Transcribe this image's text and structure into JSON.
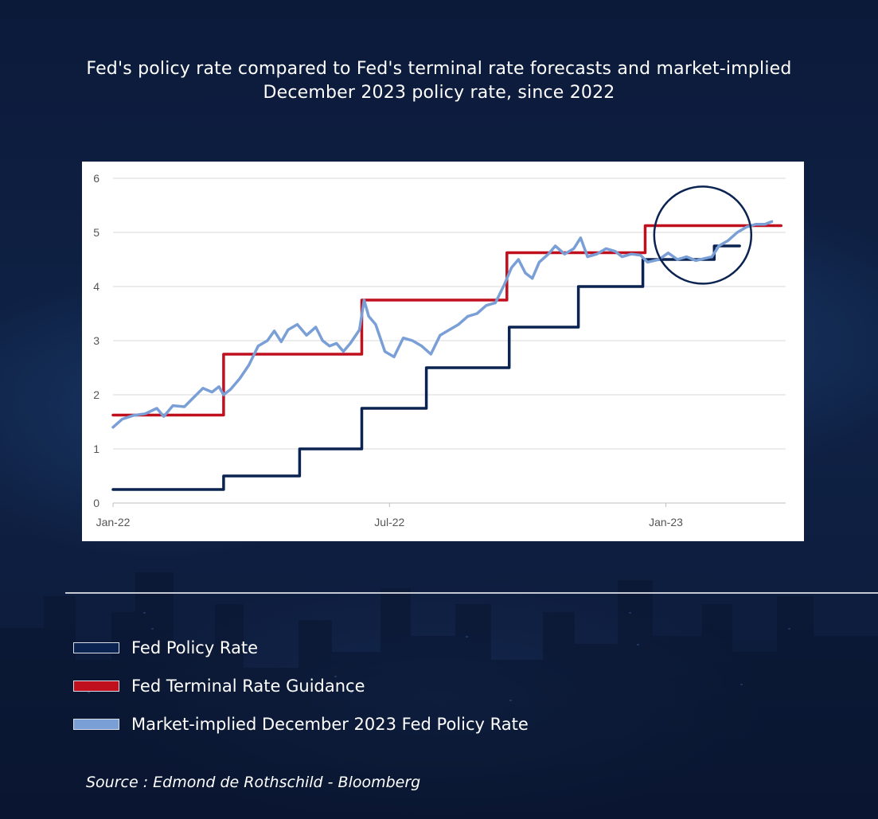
{
  "title": "Fed's policy rate compared to Fed's terminal rate forecasts and market-implied December 2023 policy rate, since 2022",
  "colors": {
    "fed_policy": "#0b2350",
    "terminal": "#c0101e",
    "market": "#7a9fd6",
    "highlight_circle": "#0b2350"
  },
  "legend": [
    {
      "label": "Fed Policy Rate",
      "color": "#0b2350"
    },
    {
      "label": "Fed Terminal Rate Guidance",
      "color": "#c0101e"
    },
    {
      "label": "Market-implied December 2023 Fed Policy Rate",
      "color": "#7a9fd6"
    }
  ],
  "source": "Source : Edmond de Rothschild - Bloomberg",
  "chart_data": {
    "type": "line",
    "title": "Fed's policy rate compared to Fed's terminal rate forecasts and market-implied December 2023 policy rate, since 2022",
    "xlabel": "",
    "ylabel": "",
    "x_unit": "months since Jan-22",
    "xlim": [
      0,
      14.6
    ],
    "ylim": [
      0,
      6
    ],
    "yticks": [
      0,
      1,
      2,
      3,
      4,
      5,
      6
    ],
    "xticks": [
      {
        "x": 0,
        "label": "Jan-22"
      },
      {
        "x": 6,
        "label": "Jul-22"
      },
      {
        "x": 12,
        "label": "Jan-23"
      }
    ],
    "grid": true,
    "annotation": {
      "type": "circle",
      "center_x": 12.8,
      "center_y": 4.95,
      "note": "highlighted recent convergence"
    },
    "series": [
      {
        "name": "Fed Policy Rate",
        "color": "#0b2350",
        "points": [
          [
            0,
            0.25
          ],
          [
            2.4,
            0.25
          ],
          [
            2.4,
            0.5
          ],
          [
            4.05,
            0.5
          ],
          [
            4.05,
            1.0
          ],
          [
            5.4,
            1.0
          ],
          [
            5.4,
            1.75
          ],
          [
            6.8,
            1.75
          ],
          [
            6.8,
            2.5
          ],
          [
            8.6,
            2.5
          ],
          [
            8.6,
            3.25
          ],
          [
            10.1,
            3.25
          ],
          [
            10.1,
            4.0
          ],
          [
            11.5,
            4.0
          ],
          [
            11.5,
            4.5
          ],
          [
            13.05,
            4.5
          ],
          [
            13.05,
            4.75
          ],
          [
            13.6,
            4.75
          ]
        ]
      },
      {
        "name": "Fed Terminal Rate Guidance",
        "color": "#c0101e",
        "points": [
          [
            0,
            1.625
          ],
          [
            2.4,
            1.625
          ],
          [
            2.4,
            2.75
          ],
          [
            5.4,
            2.75
          ],
          [
            5.4,
            3.75
          ],
          [
            8.55,
            3.75
          ],
          [
            8.55,
            4.625
          ],
          [
            11.55,
            4.625
          ],
          [
            11.55,
            5.125
          ],
          [
            14.5,
            5.125
          ]
        ]
      },
      {
        "name": "Market-implied December 2023 Fed Policy Rate",
        "color": "#7a9fd6",
        "points": [
          [
            0,
            1.4
          ],
          [
            0.2,
            1.55
          ],
          [
            0.45,
            1.62
          ],
          [
            0.7,
            1.65
          ],
          [
            0.95,
            1.75
          ],
          [
            1.1,
            1.6
          ],
          [
            1.3,
            1.8
          ],
          [
            1.55,
            1.78
          ],
          [
            1.75,
            1.95
          ],
          [
            1.95,
            2.12
          ],
          [
            2.15,
            2.05
          ],
          [
            2.3,
            2.15
          ],
          [
            2.4,
            2.0
          ],
          [
            2.55,
            2.1
          ],
          [
            2.75,
            2.3
          ],
          [
            2.95,
            2.55
          ],
          [
            3.15,
            2.9
          ],
          [
            3.35,
            3.0
          ],
          [
            3.5,
            3.18
          ],
          [
            3.65,
            2.98
          ],
          [
            3.8,
            3.2
          ],
          [
            4.0,
            3.3
          ],
          [
            4.2,
            3.1
          ],
          [
            4.4,
            3.25
          ],
          [
            4.55,
            3.0
          ],
          [
            4.7,
            2.9
          ],
          [
            4.85,
            2.95
          ],
          [
            5.0,
            2.8
          ],
          [
            5.15,
            2.95
          ],
          [
            5.35,
            3.2
          ],
          [
            5.45,
            3.75
          ],
          [
            5.55,
            3.45
          ],
          [
            5.7,
            3.3
          ],
          [
            5.9,
            2.8
          ],
          [
            6.1,
            2.7
          ],
          [
            6.3,
            3.05
          ],
          [
            6.5,
            3.0
          ],
          [
            6.7,
            2.9
          ],
          [
            6.9,
            2.75
          ],
          [
            7.1,
            3.1
          ],
          [
            7.3,
            3.2
          ],
          [
            7.5,
            3.3
          ],
          [
            7.7,
            3.45
          ],
          [
            7.9,
            3.5
          ],
          [
            8.1,
            3.65
          ],
          [
            8.3,
            3.7
          ],
          [
            8.5,
            4.05
          ],
          [
            8.65,
            4.35
          ],
          [
            8.8,
            4.5
          ],
          [
            8.95,
            4.25
          ],
          [
            9.1,
            4.15
          ],
          [
            9.25,
            4.45
          ],
          [
            9.45,
            4.6
          ],
          [
            9.6,
            4.75
          ],
          [
            9.8,
            4.6
          ],
          [
            10.0,
            4.7
          ],
          [
            10.15,
            4.9
          ],
          [
            10.3,
            4.55
          ],
          [
            10.5,
            4.6
          ],
          [
            10.7,
            4.7
          ],
          [
            10.9,
            4.65
          ],
          [
            11.05,
            4.55
          ],
          [
            11.25,
            4.6
          ],
          [
            11.45,
            4.58
          ],
          [
            11.6,
            4.45
          ],
          [
            11.85,
            4.5
          ],
          [
            12.05,
            4.62
          ],
          [
            12.25,
            4.5
          ],
          [
            12.45,
            4.55
          ],
          [
            12.65,
            4.48
          ],
          [
            12.85,
            4.52
          ],
          [
            13.0,
            4.55
          ],
          [
            13.15,
            4.75
          ],
          [
            13.35,
            4.85
          ],
          [
            13.55,
            5.0
          ],
          [
            13.75,
            5.1
          ],
          [
            13.95,
            5.15
          ],
          [
            14.15,
            5.15
          ],
          [
            14.3,
            5.2
          ]
        ]
      }
    ]
  }
}
